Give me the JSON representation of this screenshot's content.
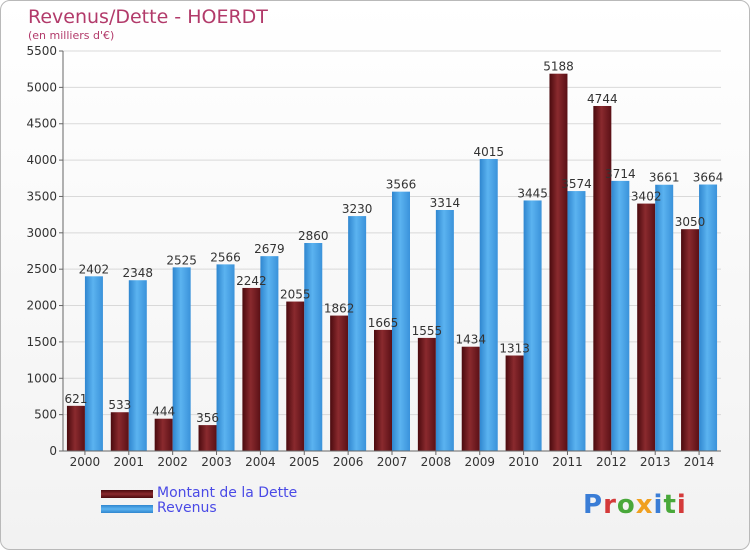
{
  "title": "Revenus/Dette - HOERDT",
  "subtitle": "(en milliers d'€)",
  "logo": {
    "text": "Proxiti",
    "letter_colors": [
      "#3a7dd6",
      "#d43a3a",
      "#49a83a",
      "#f0a020",
      "#3a7dd6",
      "#49a83a",
      "#d43a3a"
    ]
  },
  "chart_data": {
    "type": "bar",
    "title": "Revenus/Dette - HOERDT",
    "subtitle": "(en milliers d'€)",
    "categories": [
      "2000",
      "2001",
      "2002",
      "2003",
      "2004",
      "2005",
      "2006",
      "2007",
      "2008",
      "2009",
      "2010",
      "2011",
      "2012",
      "2013",
      "2014"
    ],
    "series": [
      {
        "name": "Montant de la Dette",
        "color": "#7a1f24",
        "values": [
          621,
          533,
          444,
          356,
          2242,
          2055,
          1862,
          1665,
          1555,
          1434,
          1313,
          5188,
          4744,
          3402,
          3050
        ],
        "labels": [
          "621",
          "533",
          "444",
          "356",
          "2242",
          "2055",
          "1862",
          "1665",
          "1555",
          "1434",
          "1313",
          "5188",
          "4744",
          "3402",
          "3050"
        ]
      },
      {
        "name": "Revenus",
        "color": "#4da6e8",
        "values": [
          2402,
          2348,
          2525,
          2566,
          2679,
          2860,
          3230,
          3566,
          3314,
          4015,
          3445,
          3574,
          3714,
          3661,
          3664
        ],
        "labels": [
          "2402",
          "2348",
          "2525",
          "2566",
          "2679",
          "2860",
          "3230",
          "3566",
          "3314",
          "4015",
          "3445",
          "3574",
          "3714",
          "3661",
          "3664"
        ]
      }
    ],
    "ylim": [
      0,
      5500
    ],
    "yticks": [
      0,
      500,
      1000,
      1500,
      2000,
      2500,
      3000,
      3500,
      4000,
      4500,
      5000,
      5500
    ],
    "grid": true,
    "legend": "bottom-left"
  }
}
